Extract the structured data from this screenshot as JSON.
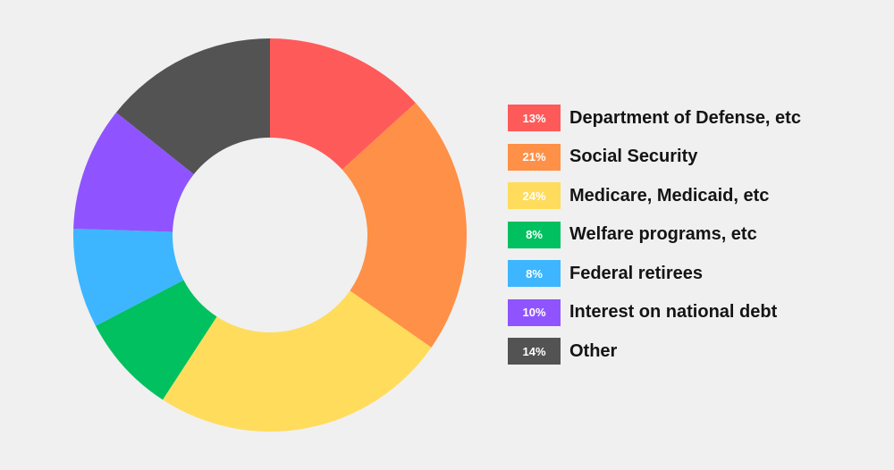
{
  "chart_data": {
    "type": "pie",
    "variant": "donut",
    "title": "",
    "slices": [
      {
        "label": "Department of Defense, etc",
        "value": 13,
        "display": "13%",
        "color": "#ff5a5a"
      },
      {
        "label": "Social Security",
        "value": 21,
        "display": "21%",
        "color": "#ff9047"
      },
      {
        "label": "Medicare, Medicaid, etc",
        "value": 24,
        "display": "24%",
        "color": "#ffdc5c"
      },
      {
        "label": "Welfare programs, etc",
        "value": 8,
        "display": "8%",
        "color": "#00c060"
      },
      {
        "label": "Federal retirees",
        "value": 8,
        "display": "8%",
        "color": "#3db6ff"
      },
      {
        "label": "Interest on national debt",
        "value": 10,
        "display": "10%",
        "color": "#8f54ff"
      },
      {
        "label": "Other",
        "value": 14,
        "display": "14%",
        "color": "#535353"
      }
    ],
    "legend_position": "right"
  }
}
